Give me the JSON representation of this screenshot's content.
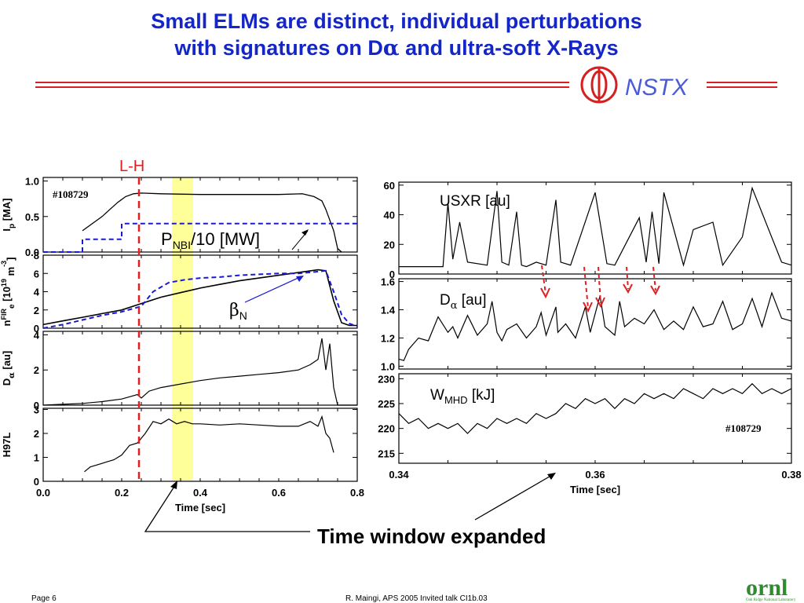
{
  "slide": {
    "title_line1": "Small ELMs are distinct, individual perturbations",
    "title_line2_pre": "with signatures on D",
    "title_line2_sym": "α",
    "title_line2_post": " and ultra-soft X-Rays",
    "footer_page": "Page 6",
    "footer_credit": "R. Maingi, APS 2005  Invited talk CI1b.03",
    "logo_nstx": "NSTX",
    "logo_ornl": "ornl",
    "logo_ornl_sub": "Oak Ridge National Laboratory"
  },
  "annotations": {
    "lh": "L-H",
    "pnbi_main": "P",
    "pnbi_sub": "NBI",
    "pnbi_rest": "/10 [MW]",
    "betan_main": "β",
    "betan_sub": "N",
    "shot_left": "#108729",
    "shot_right": "#108729",
    "time_window": "Time window expanded"
  },
  "colors": {
    "title": "#1426c8",
    "accent_red": "#e02020",
    "trace": "#000000",
    "dashed_blue": "#1a1ad0",
    "highlight": "#ffff99"
  },
  "chart_data": [
    {
      "type": "line",
      "panel": "left-ip",
      "ylabel_main": "I",
      "ylabel_sub": "p",
      "ylabel_rest": " [MA]",
      "yticks": [
        "0.0",
        "0.5",
        "1.0"
      ],
      "ylim": [
        0,
        1.05
      ],
      "xlim": [
        0,
        0.8
      ],
      "series": [
        {
          "x": [
            0.1,
            0.12,
            0.15,
            0.17,
            0.19,
            0.21,
            0.23,
            0.25,
            0.3,
            0.4,
            0.5,
            0.6,
            0.66,
            0.69,
            0.71,
            0.72,
            0.74,
            0.75,
            0.76
          ],
          "y": [
            0.3,
            0.38,
            0.5,
            0.6,
            0.7,
            0.78,
            0.82,
            0.83,
            0.82,
            0.81,
            0.81,
            0.81,
            0.82,
            0.78,
            0.72,
            0.6,
            0.3,
            0.05,
            0.0
          ]
        },
        {
          "x": [
            0.0,
            0.1,
            0.1,
            0.2,
            0.2,
            0.4,
            0.4,
            0.72,
            0.72,
            0.8
          ],
          "y": [
            0.0,
            0.0,
            0.18,
            0.18,
            0.4,
            0.4,
            0.4,
            0.4,
            0.4,
            0.4
          ]
        }
      ]
    },
    {
      "type": "line",
      "panel": "left-ne",
      "ylabel_main": "n",
      "ylabel_sub": "e",
      "ylabel_sup": "FIR",
      "ylabel_rest": "  [10",
      "ylabel_exp": "19",
      "ylabel_unit": " m",
      "ylabel_uexp": "-3",
      "ylabel_close": "]",
      "yticks": [
        "0",
        "2",
        "4",
        "6",
        "8"
      ],
      "ylim": [
        0,
        8
      ],
      "xlim": [
        0,
        0.8
      ],
      "series": [
        {
          "x": [
            0.0,
            0.05,
            0.1,
            0.15,
            0.2,
            0.25,
            0.3,
            0.35,
            0.4,
            0.45,
            0.5,
            0.55,
            0.6,
            0.65,
            0.7,
            0.72,
            0.74,
            0.76,
            0.78,
            0.8
          ],
          "y": [
            0.4,
            0.8,
            1.2,
            1.6,
            2.0,
            2.7,
            3.4,
            3.9,
            4.4,
            4.8,
            5.2,
            5.5,
            5.8,
            6.1,
            6.4,
            6.3,
            3.0,
            0.6,
            0.3,
            0.3
          ]
        },
        {
          "x": [
            0.0,
            0.05,
            0.1,
            0.15,
            0.2,
            0.25,
            0.28,
            0.32,
            0.36,
            0.4,
            0.45,
            0.5,
            0.55,
            0.6,
            0.65,
            0.7,
            0.72,
            0.74,
            0.76,
            0.78,
            0.8
          ],
          "y": [
            0.0,
            0.4,
            0.9,
            1.4,
            1.8,
            2.4,
            4.0,
            5.0,
            5.3,
            5.5,
            5.6,
            5.8,
            5.9,
            6.0,
            6.0,
            6.2,
            6.3,
            4.0,
            1.5,
            0.5,
            0.2
          ]
        }
      ]
    },
    {
      "type": "line",
      "panel": "left-da",
      "ylabel_main": "D",
      "ylabel_sub": "α",
      "ylabel_rest": " [au]",
      "yticks": [
        "0",
        "2",
        "4"
      ],
      "ylim": [
        0,
        4.2
      ],
      "xlim": [
        0,
        0.8
      ],
      "series": [
        {
          "x": [
            0.0,
            0.05,
            0.1,
            0.15,
            0.2,
            0.24,
            0.25,
            0.27,
            0.3,
            0.35,
            0.4,
            0.45,
            0.5,
            0.55,
            0.6,
            0.65,
            0.68,
            0.7,
            0.71,
            0.72,
            0.73,
            0.74,
            0.75,
            0.76,
            0.8
          ],
          "y": [
            0.0,
            0.05,
            0.1,
            0.2,
            0.35,
            0.6,
            0.4,
            0.8,
            1.0,
            1.2,
            1.4,
            1.55,
            1.65,
            1.75,
            1.85,
            2.0,
            2.3,
            2.6,
            3.8,
            2.0,
            3.5,
            1.0,
            0.0,
            0.0,
            0.0
          ]
        }
      ]
    },
    {
      "type": "line",
      "panel": "left-h97",
      "ylabel_main": "H97L",
      "yticks": [
        "0",
        "1",
        "2",
        "3"
      ],
      "ylim": [
        0,
        3.05
      ],
      "xlim": [
        0,
        0.8
      ],
      "xticks": [
        "0.0",
        "0.2",
        "0.4",
        "0.6",
        "0.8"
      ],
      "xlabel": "Time [sec]",
      "series": [
        {
          "x": [
            0.105,
            0.12,
            0.14,
            0.16,
            0.18,
            0.2,
            0.22,
            0.24,
            0.25,
            0.26,
            0.28,
            0.3,
            0.32,
            0.34,
            0.36,
            0.38,
            0.4,
            0.45,
            0.5,
            0.55,
            0.6,
            0.65,
            0.68,
            0.7,
            0.71,
            0.72,
            0.73,
            0.74
          ],
          "y": [
            0.4,
            0.6,
            0.7,
            0.8,
            0.9,
            1.1,
            1.5,
            1.6,
            1.8,
            2.0,
            2.5,
            2.4,
            2.6,
            2.4,
            2.5,
            2.4,
            2.4,
            2.35,
            2.4,
            2.35,
            2.3,
            2.3,
            2.5,
            2.3,
            2.7,
            2.0,
            1.8,
            1.2
          ]
        }
      ]
    },
    {
      "type": "line",
      "panel": "right-usxr",
      "label": "USXR [au]",
      "yticks": [
        "0",
        "20",
        "40",
        "60"
      ],
      "ylim": [
        0,
        62
      ],
      "xlim": [
        0.34,
        0.38
      ],
      "series": [
        {
          "x": [
            0.34,
            0.3445,
            0.345,
            0.3455,
            0.3462,
            0.347,
            0.349,
            0.35,
            0.3505,
            0.3512,
            0.352,
            0.3525,
            0.353,
            0.354,
            0.355,
            0.356,
            0.3565,
            0.3575,
            0.36,
            0.3612,
            0.362,
            0.3645,
            0.3652,
            0.3658,
            0.3665,
            0.367,
            0.369,
            0.37,
            0.372,
            0.373,
            0.375,
            0.376,
            0.379,
            0.38
          ],
          "y": [
            5,
            5,
            48,
            10,
            35,
            8,
            6,
            56,
            8,
            6,
            42,
            6,
            5,
            8,
            6,
            50,
            8,
            6,
            55,
            7,
            6,
            38,
            8,
            42,
            7,
            55,
            6,
            30,
            35,
            6,
            25,
            58,
            8,
            6
          ]
        }
      ]
    },
    {
      "type": "line",
      "panel": "right-da",
      "label_main": "D",
      "label_sub": "α",
      "label_rest": " [au]",
      "yticks": [
        "1.0",
        "1.2",
        "1.4",
        "1.6"
      ],
      "ylim": [
        0.98,
        1.62
      ],
      "xlim": [
        0.34,
        0.38
      ],
      "series": [
        {
          "x": [
            0.34,
            0.3405,
            0.341,
            0.342,
            0.343,
            0.344,
            0.345,
            0.3455,
            0.346,
            0.347,
            0.348,
            0.349,
            0.3495,
            0.35,
            0.3505,
            0.351,
            0.352,
            0.353,
            0.354,
            0.3545,
            0.355,
            0.356,
            0.3562,
            0.357,
            0.358,
            0.359,
            0.3595,
            0.3605,
            0.361,
            0.362,
            0.3625,
            0.363,
            0.364,
            0.365,
            0.366,
            0.367,
            0.368,
            0.369,
            0.37,
            0.371,
            0.372,
            0.373,
            0.374,
            0.375,
            0.376,
            0.377,
            0.378,
            0.379,
            0.38
          ],
          "y": [
            1.05,
            1.04,
            1.12,
            1.2,
            1.18,
            1.35,
            1.24,
            1.28,
            1.2,
            1.36,
            1.22,
            1.3,
            1.46,
            1.24,
            1.18,
            1.26,
            1.3,
            1.2,
            1.28,
            1.38,
            1.22,
            1.42,
            1.24,
            1.3,
            1.2,
            1.42,
            1.24,
            1.5,
            1.28,
            1.22,
            1.46,
            1.28,
            1.34,
            1.3,
            1.4,
            1.26,
            1.32,
            1.26,
            1.42,
            1.28,
            1.3,
            1.46,
            1.26,
            1.3,
            1.48,
            1.28,
            1.52,
            1.34,
            1.32
          ]
        }
      ]
    },
    {
      "type": "line",
      "panel": "right-wmhd",
      "label_main": "W",
      "label_sub": "MHD",
      "label_rest": " [kJ]",
      "yticks": [
        "215",
        "220",
        "225",
        "230"
      ],
      "ylim": [
        213,
        231
      ],
      "xlim": [
        0.34,
        0.38
      ],
      "xticks": [
        "0.34",
        "0.36",
        "0.38"
      ],
      "xlabel": "Time [sec]",
      "series": [
        {
          "x": [
            0.34,
            0.341,
            0.342,
            0.343,
            0.344,
            0.345,
            0.346,
            0.347,
            0.348,
            0.349,
            0.35,
            0.351,
            0.352,
            0.353,
            0.354,
            0.355,
            0.356,
            0.357,
            0.358,
            0.359,
            0.36,
            0.361,
            0.362,
            0.363,
            0.364,
            0.365,
            0.366,
            0.367,
            0.368,
            0.369,
            0.37,
            0.371,
            0.372,
            0.373,
            0.374,
            0.375,
            0.376,
            0.377,
            0.378,
            0.379,
            0.38
          ],
          "y": [
            223,
            221,
            222,
            220,
            221,
            220,
            221,
            219,
            221,
            220,
            222,
            221,
            222,
            221,
            223,
            222,
            223,
            225,
            224,
            226,
            225,
            226,
            224,
            226,
            225,
            227,
            226,
            227,
            226,
            228,
            227,
            226,
            228,
            227,
            228,
            227,
            229,
            227,
            228,
            227,
            228
          ]
        }
      ]
    }
  ]
}
